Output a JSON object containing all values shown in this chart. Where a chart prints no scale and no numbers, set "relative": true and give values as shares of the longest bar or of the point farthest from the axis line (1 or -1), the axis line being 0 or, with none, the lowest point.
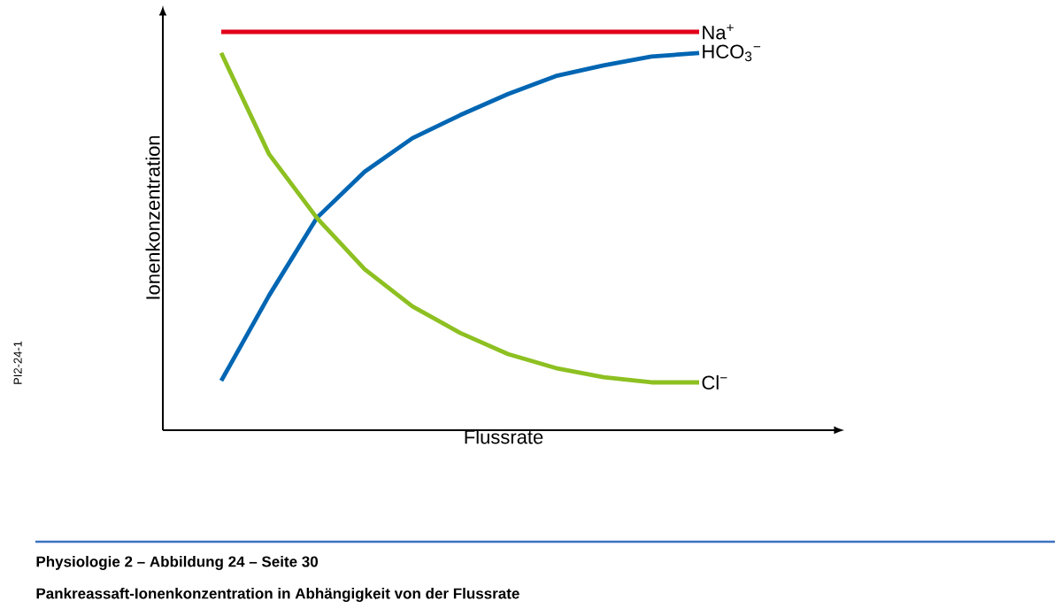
{
  "chart_data": {
    "type": "line",
    "relative": true,
    "title": "Pankreassaft-Ionenkonzentration in Abhängigkeit von der Flussrate",
    "subtitle": "Physiologie 2 – Abbildung 24 – Seite 30",
    "xlabel": "Flussrate",
    "ylabel": "Ionenkonzentration",
    "annotations": [
      "PI2-24-1"
    ],
    "categories": [
      null,
      null,
      null,
      null,
      null,
      null,
      null,
      null,
      null,
      null,
      null
    ],
    "series": [
      {
        "name": "Na$^{+}$",
        "color": "#e2001a",
        "values": [
          1,
          1,
          1,
          1,
          1,
          1,
          1,
          1,
          1,
          1,
          1
        ]
      },
      {
        "name": "HCO$_{3}$$^{−}$",
        "color": "#0066b3",
        "values": [
          0.124,
          0.338,
          0.533,
          0.649,
          0.733,
          0.791,
          0.844,
          0.889,
          0.916,
          0.938,
          0.947
        ]
      },
      {
        "name": "Cl$^{−}$",
        "color": "#8dc021",
        "values": [
          0.947,
          0.693,
          0.533,
          0.404,
          0.311,
          0.244,
          0.191,
          0.156,
          0.133,
          0.12,
          0.12
        ]
      }
    ]
  }
}
